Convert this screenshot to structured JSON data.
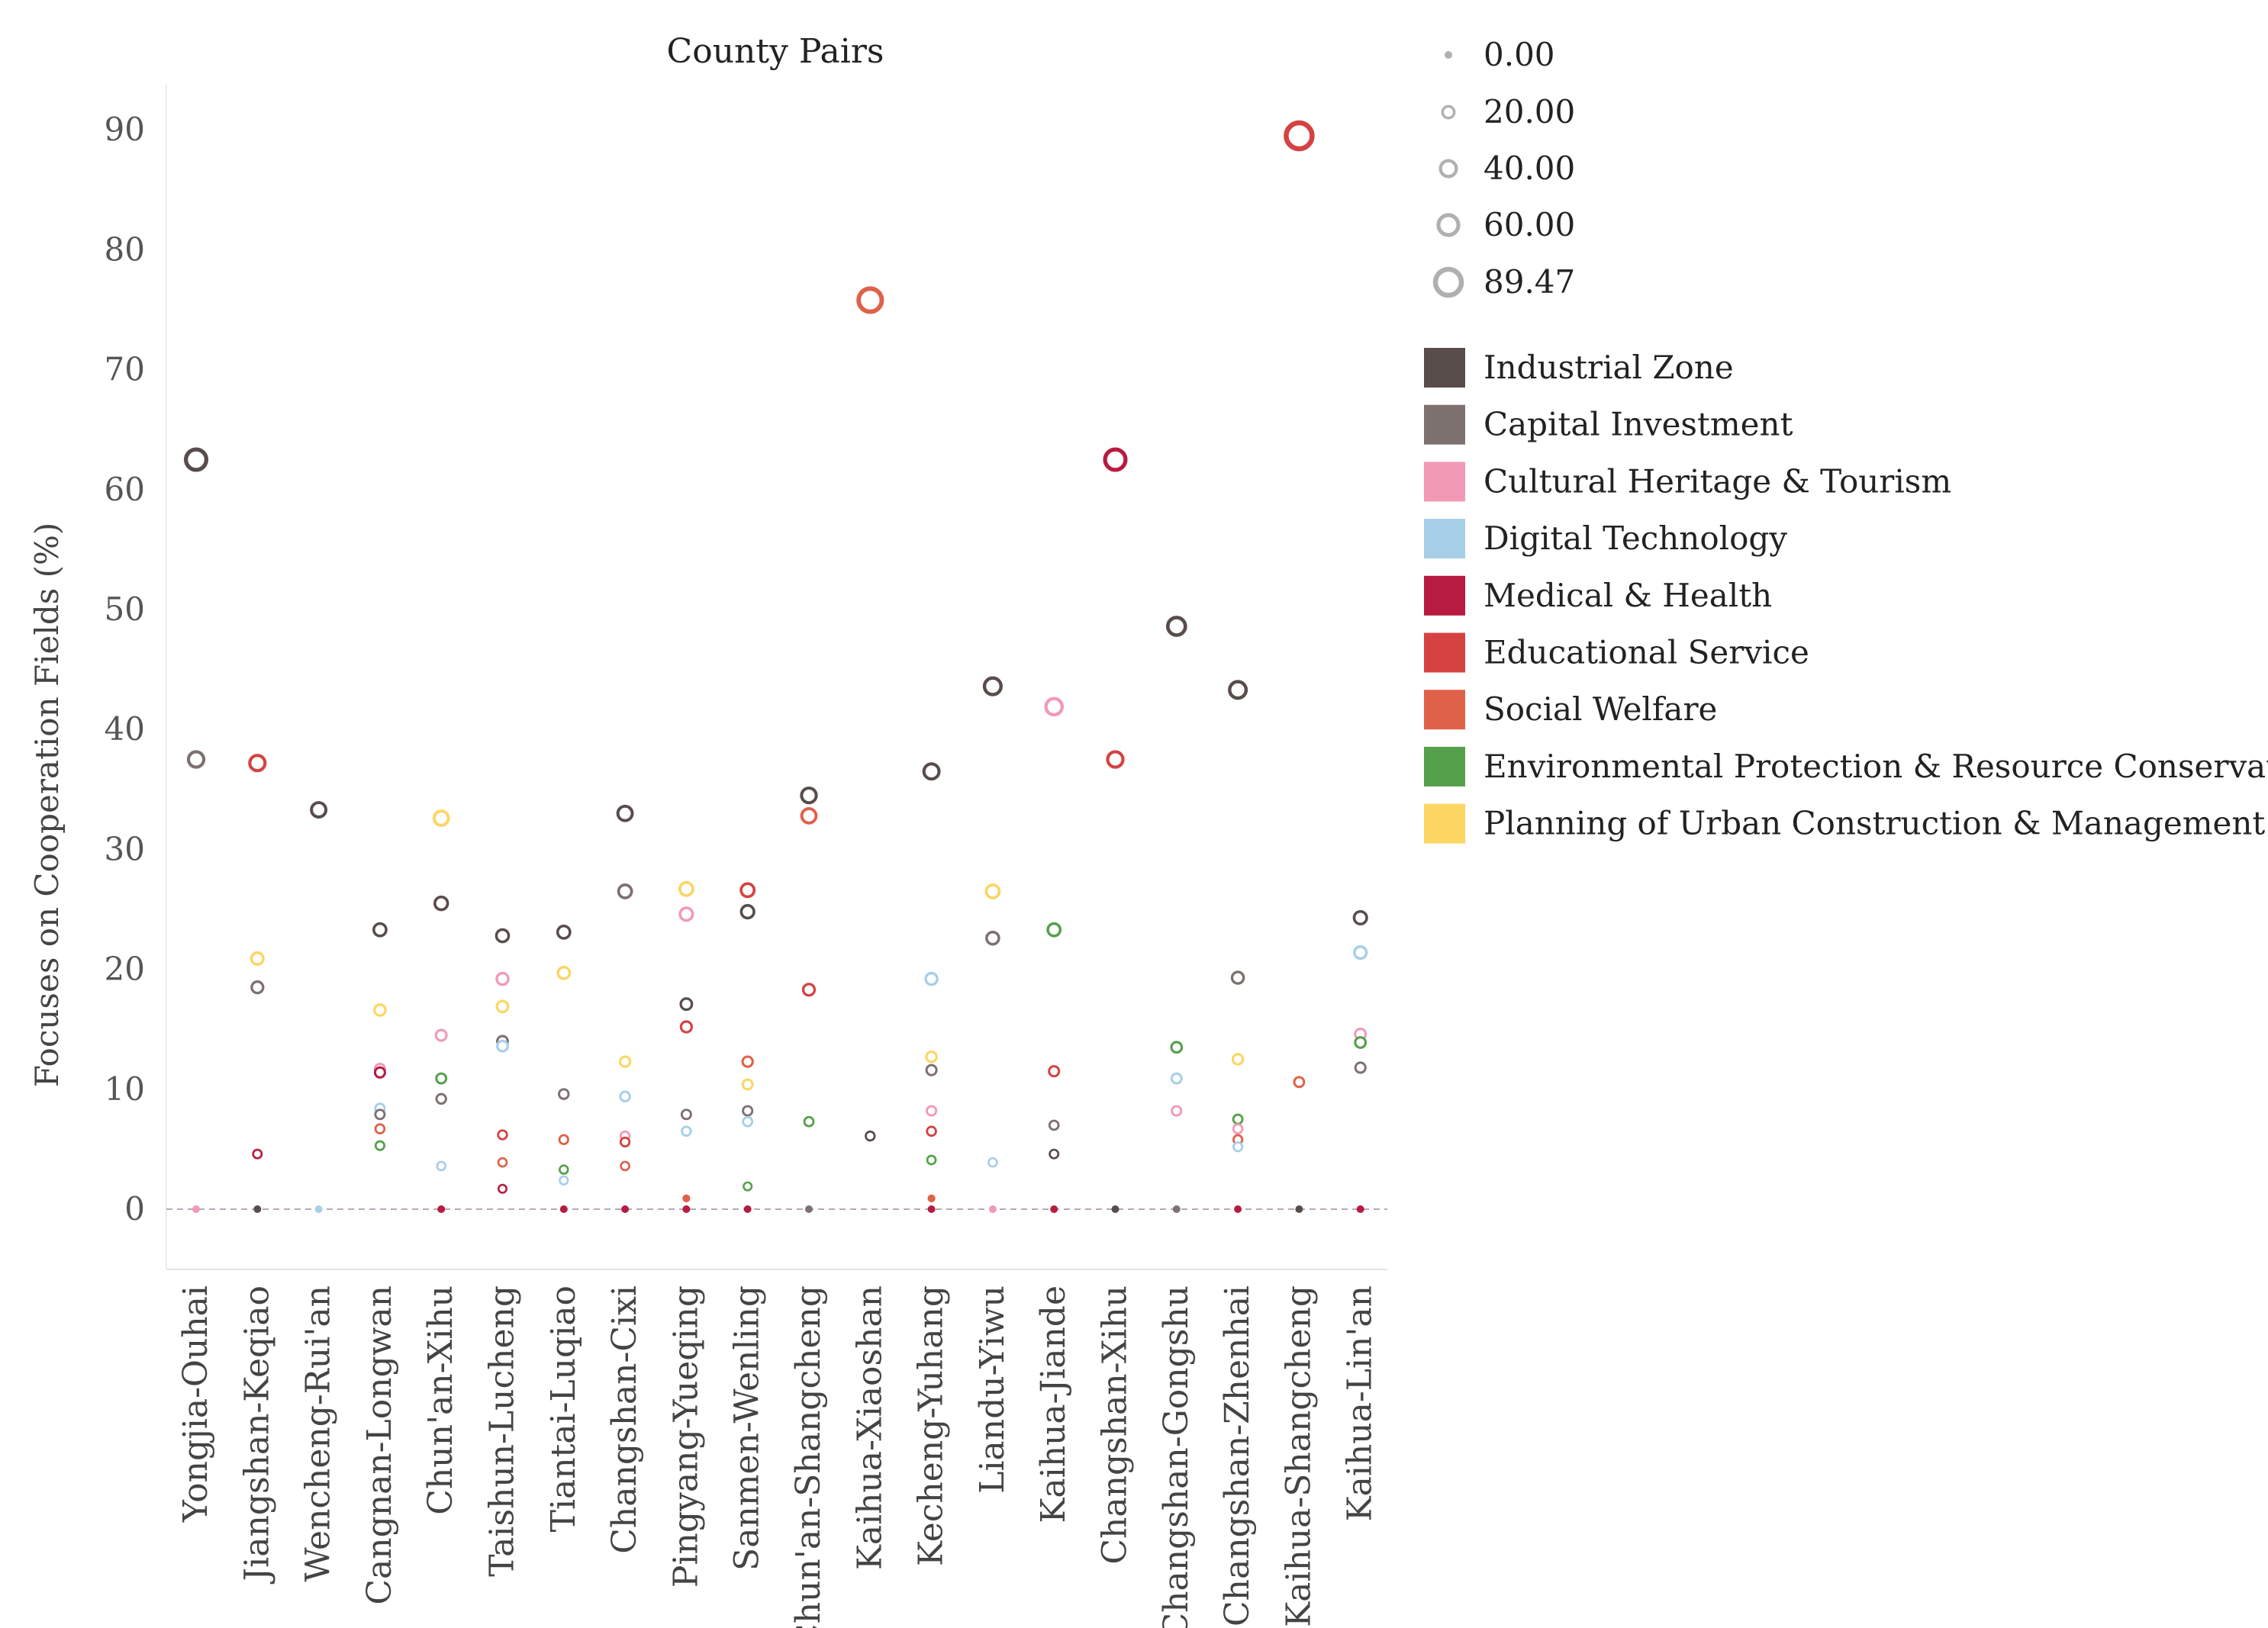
{
  "chart_data": {
    "type": "scatter",
    "title": "County Pairs",
    "xlabel": "",
    "ylabel": "Focuses on Cooperation Fields (%)",
    "ylim": [
      -5,
      95
    ],
    "yticks": [
      0,
      10,
      20,
      30,
      40,
      50,
      60,
      70,
      80,
      90
    ],
    "grid": false,
    "reference_line": 0,
    "size_legend": {
      "values": [
        0,
        20,
        40,
        60,
        89.47
      ],
      "labels": [
        "0.00",
        "20.00",
        "40.00",
        "60.00",
        "89.47"
      ],
      "color": "#b0b0b0"
    },
    "categories": [
      "Yongjia-Ouhai",
      "Jiangshan-Keqiao",
      "Wencheng-Rui'an",
      "Cangnan-Longwan",
      "Chun'an-Xihu",
      "Taishun-Lucheng",
      "Tiantai-Luqiao",
      "Changshan-Cixi",
      "Pingyang-Yueqing",
      "Sanmen-Wenling",
      "Chun'an-Shangcheng",
      "Kaihua-Xiaoshan",
      "Kecheng-Yuhang",
      "Liandu-Yiwu",
      "Kaihua-Jiande",
      "Changshan-Xihu",
      "Changshan-Gongshu",
      "Changshan-Zhenhai",
      "Kaihua-Shangcheng",
      "Kaihua-Lin'an"
    ],
    "series": [
      {
        "name": "Industrial Zone",
        "color": "#584d4b",
        "values": [
          62.5,
          0,
          33.3,
          23.3,
          25.5,
          22.8,
          23.1,
          33.0,
          17.1,
          24.8,
          34.5,
          6.1,
          36.5,
          43.6,
          4.6,
          0,
          48.6,
          43.3,
          0,
          24.3
        ]
      },
      {
        "name": "Capital Investment",
        "color": "#7d7170",
        "values": [
          37.5,
          18.5,
          null,
          7.9,
          9.2,
          14.0,
          9.6,
          26.5,
          7.9,
          8.2,
          0,
          null,
          11.6,
          22.6,
          7.0,
          null,
          0,
          19.3,
          null,
          11.8
        ]
      },
      {
        "name": "Cultural Heritage & Tourism",
        "color": "#f29ab5",
        "values": [
          0,
          null,
          null,
          11.7,
          14.5,
          19.2,
          null,
          6.1,
          24.6,
          null,
          null,
          null,
          8.2,
          0,
          41.9,
          null,
          8.2,
          6.7,
          null,
          14.6
        ]
      },
      {
        "name": "Digital Technology",
        "color": "#a6cfe8",
        "values": [
          null,
          null,
          0,
          8.4,
          3.6,
          13.6,
          2.4,
          9.4,
          6.5,
          7.3,
          null,
          null,
          19.2,
          3.9,
          null,
          null,
          10.9,
          5.2,
          null,
          21.4
        ]
      },
      {
        "name": "Medical & Health",
        "color": "#b81b40",
        "values": [
          null,
          4.6,
          null,
          11.4,
          0,
          1.7,
          0,
          0,
          0,
          0,
          null,
          null,
          0,
          null,
          0,
          62.5,
          null,
          0,
          null,
          0
        ]
      },
      {
        "name": "Educational Service",
        "color": "#d44341",
        "values": [
          null,
          37.2,
          null,
          null,
          null,
          6.2,
          null,
          5.6,
          15.2,
          26.6,
          18.3,
          null,
          6.5,
          null,
          11.5,
          37.5,
          null,
          null,
          89.5,
          null
        ]
      },
      {
        "name": "Social Welfare",
        "color": "#e0614a",
        "values": [
          null,
          null,
          null,
          6.7,
          null,
          3.9,
          5.8,
          3.6,
          0.9,
          12.3,
          32.8,
          75.8,
          0.9,
          null,
          null,
          null,
          null,
          5.8,
          10.6,
          null
        ]
      },
      {
        "name": "Environmental Protection & Resource Conservation",
        "color": "#55a04b",
        "values": [
          null,
          null,
          null,
          5.3,
          10.9,
          null,
          3.3,
          null,
          null,
          1.9,
          7.3,
          null,
          4.1,
          null,
          23.3,
          null,
          13.5,
          7.5,
          null,
          13.9
        ]
      },
      {
        "name": "Planning of Urban Construction & Management",
        "color": "#fbd662",
        "values": [
          null,
          20.9,
          null,
          16.6,
          32.6,
          16.9,
          19.7,
          12.3,
          26.7,
          10.4,
          null,
          null,
          12.7,
          26.5,
          null,
          null,
          null,
          12.5,
          null,
          null
        ]
      }
    ]
  }
}
